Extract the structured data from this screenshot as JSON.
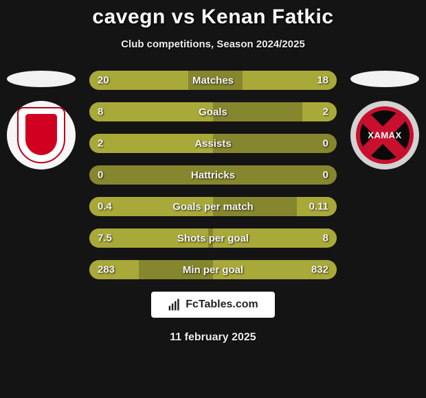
{
  "header": {
    "title": "cavegn vs Kenan Fatkic",
    "subtitle": "Club competitions, Season 2024/2025"
  },
  "colors": {
    "bar_track": "#86862f",
    "bar_fill_left": "#a9a93a",
    "bar_fill_right": "#a9a93a",
    "flag_left": "#f2f2f2",
    "flag_right": "#f2f2f2",
    "crest_left_bg": "#f6f6f6",
    "crest_right_bg": "#d2d2d2",
    "crest_right_text": "XAMAX"
  },
  "stats": [
    {
      "label": "Matches",
      "left_value": "20",
      "right_value": "18",
      "left_pct": 40,
      "right_pct": 38
    },
    {
      "label": "Goals",
      "left_value": "8",
      "right_value": "2",
      "left_pct": 50,
      "right_pct": 14
    },
    {
      "label": "Assists",
      "left_value": "2",
      "right_value": "0",
      "left_pct": 50,
      "right_pct": 0
    },
    {
      "label": "Hattricks",
      "left_value": "0",
      "right_value": "0",
      "left_pct": 0,
      "right_pct": 0
    },
    {
      "label": "Goals per match",
      "left_value": "0.4",
      "right_value": "0.11",
      "left_pct": 50,
      "right_pct": 16
    },
    {
      "label": "Shots per goal",
      "left_value": "7.5",
      "right_value": "8",
      "left_pct": 48,
      "right_pct": 50
    },
    {
      "label": "Min per goal",
      "left_value": "283",
      "right_value": "832",
      "left_pct": 20,
      "right_pct": 50
    }
  ],
  "branding": {
    "text": "FcTables.com"
  },
  "date": "11 february 2025"
}
